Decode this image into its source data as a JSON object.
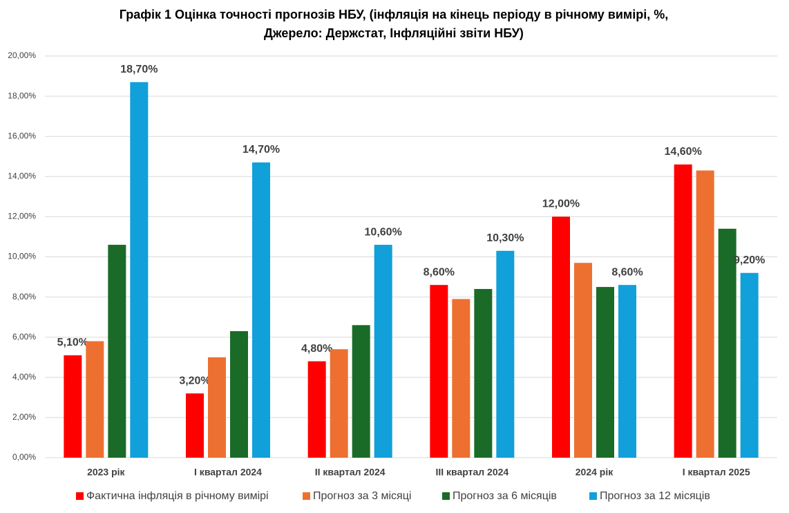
{
  "chart_data": {
    "type": "bar",
    "title": "Графік 1 Оцінка точності прогнозів НБУ, (інфляція на кінець періоду в річному вимірі, %,",
    "subtitle": "Джерело: Держстат, Інфляційні звіти НБУ)",
    "categories": [
      "2023 рік",
      "I квартал 2024",
      "II квартал 2024",
      "III квартал 2024",
      "2024 рік",
      "I квартал 2025"
    ],
    "series": [
      {
        "name": "Фактична інфляція в річному вимірі",
        "color": "#ff0000",
        "values": [
          5.1,
          3.2,
          4.8,
          8.6,
          12.0,
          14.6
        ],
        "value_labels": [
          "5,10%",
          "3,20%",
          "4,80%",
          "8,60%",
          "12,00%",
          "14,60%"
        ]
      },
      {
        "name": "Прогноз за 3 місяці",
        "color": "#ed7031",
        "values": [
          5.8,
          5.0,
          5.4,
          7.9,
          9.7,
          14.3
        ]
      },
      {
        "name": "Прогноз за 6 місяців",
        "color": "#1a6b28",
        "values": [
          10.6,
          6.3,
          6.6,
          8.4,
          8.5,
          11.4
        ]
      },
      {
        "name": "Прогноз за 12 місяців",
        "color": "#11a0d9",
        "values": [
          18.7,
          14.7,
          10.6,
          10.3,
          8.6,
          9.2
        ],
        "value_labels": [
          "18,70%",
          "14,70%",
          "10,60%",
          "10,30%",
          "8,60%",
          "9,20%"
        ]
      }
    ],
    "ylim": [
      0,
      20
    ],
    "yticks": [
      {
        "value": 0,
        "label": "0,00%"
      },
      {
        "value": 2,
        "label": "2,00%"
      },
      {
        "value": 4,
        "label": "4,00%"
      },
      {
        "value": 6,
        "label": "6,00%"
      },
      {
        "value": 8,
        "label": "8,00%"
      },
      {
        "value": 10,
        "label": "10,00%"
      },
      {
        "value": 12,
        "label": "12,00%"
      },
      {
        "value": 14,
        "label": "14,00%"
      },
      {
        "value": 16,
        "label": "16,00%"
      },
      {
        "value": 18,
        "label": "18,00%"
      },
      {
        "value": 20,
        "label": "20,00%"
      }
    ],
    "grid": true,
    "legend": "bottom"
  }
}
